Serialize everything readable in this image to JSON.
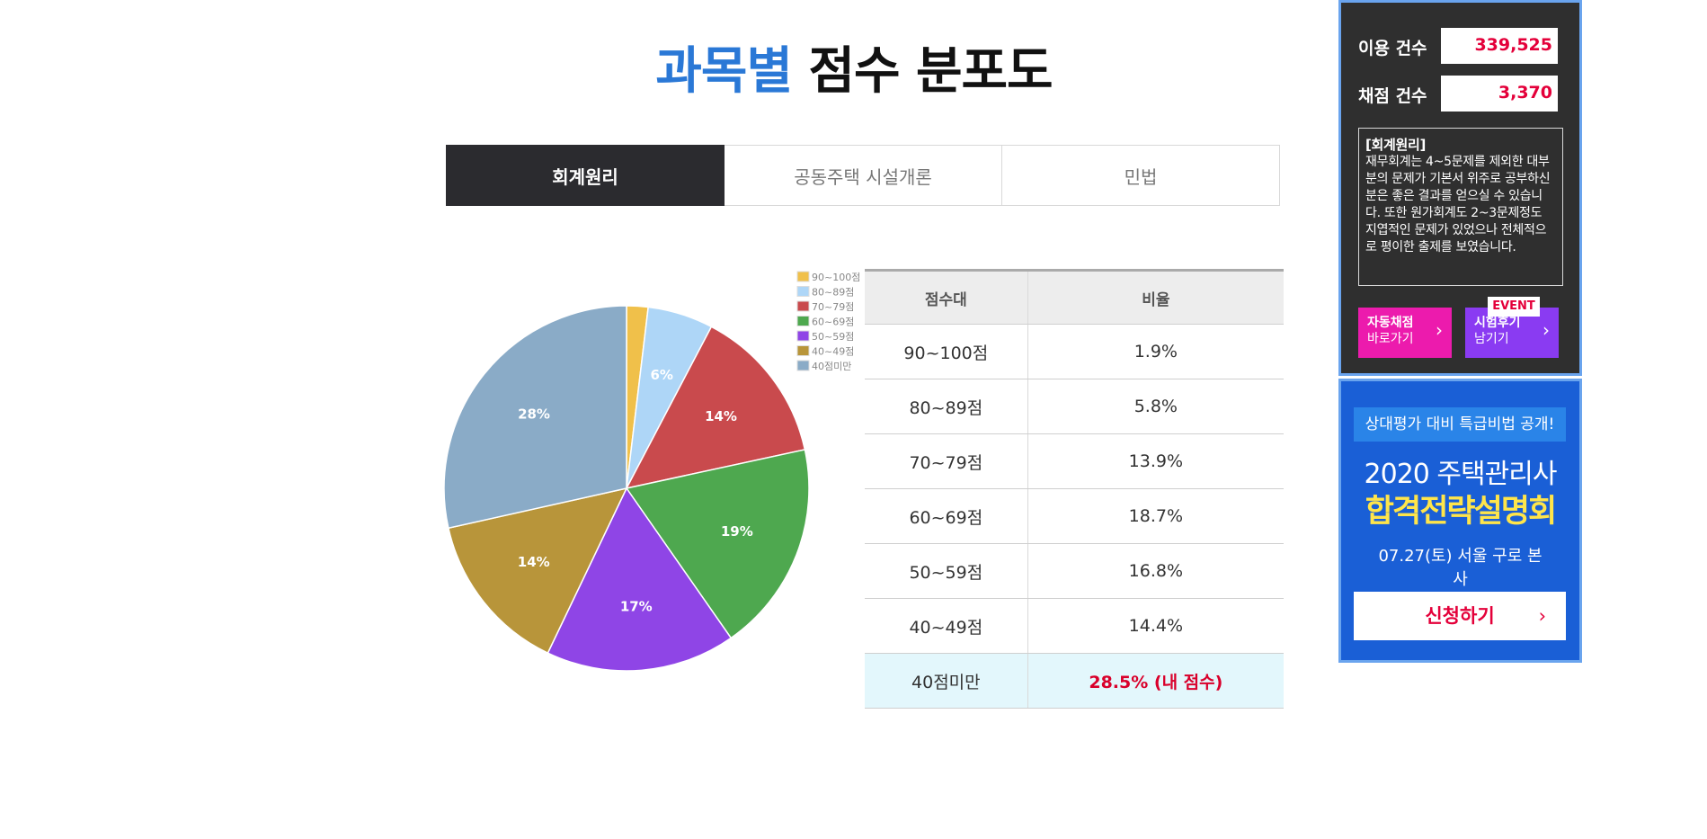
{
  "title": {
    "highlight": "과목별",
    "rest": "점수 분포도"
  },
  "tabs": [
    {
      "label": "회계원리",
      "active": true
    },
    {
      "label": "공동주택 시설개론",
      "active": false
    },
    {
      "label": "민법",
      "active": false
    }
  ],
  "chart_data": {
    "type": "pie",
    "categories": [
      "90~100점",
      "80~89점",
      "70~79점",
      "60~69점",
      "50~59점",
      "40~49점",
      "40점미만"
    ],
    "values": [
      1.9,
      5.8,
      13.9,
      18.7,
      16.8,
      14.4,
      28.5
    ],
    "slice_labels": [
      "",
      "6%",
      "14%",
      "19%",
      "17%",
      "14%",
      "28%"
    ],
    "colors": [
      "#f0c04a",
      "#aed6f7",
      "#c94a4d",
      "#4ea84f",
      "#8f45e6",
      "#b8953a",
      "#8aabc7"
    ],
    "legend": "top-right"
  },
  "table": {
    "headers": [
      "점수대",
      "비율"
    ],
    "rows": [
      {
        "range": "90~100점",
        "ratio": "1.9%"
      },
      {
        "range": "80~89점",
        "ratio": "5.8%"
      },
      {
        "range": "70~79점",
        "ratio": "13.9%"
      },
      {
        "range": "60~69점",
        "ratio": "18.7%"
      },
      {
        "range": "50~59점",
        "ratio": "16.8%"
      },
      {
        "range": "40~49점",
        "ratio": "14.4%"
      },
      {
        "range": "40점미만",
        "ratio": "28.5% (내 점수)"
      }
    ]
  },
  "side": {
    "usage_label": "이용 건수",
    "usage_value": "339,525",
    "grade_label": "채점 건수",
    "grade_value": "3,370",
    "note_title": "[회계원리]",
    "note_body": "재무회계는 4~5문제를 제외한 대부분의 문제가 기본서 위주로 공부하신 분은 좋은 결과를 얻으실 수 있습니다. 또한 원가회계도 2~3문제정도 지엽적인 문제가 있었으나 전체적으로 평이한 출제를 보였습니다.",
    "btn1_line1": "자동채점",
    "btn1_line2": "바로가기",
    "btn2_line1": "시험후기",
    "btn2_line2": "남기기",
    "event_badge": "EVENT"
  },
  "banner": {
    "top": "상대평가 대비 특급비법 공개!",
    "year": "2020 주택관리사",
    "main": "합격전략설명회",
    "date": "07.27(토) 서울 구로 본사",
    "button": "신청하기"
  }
}
